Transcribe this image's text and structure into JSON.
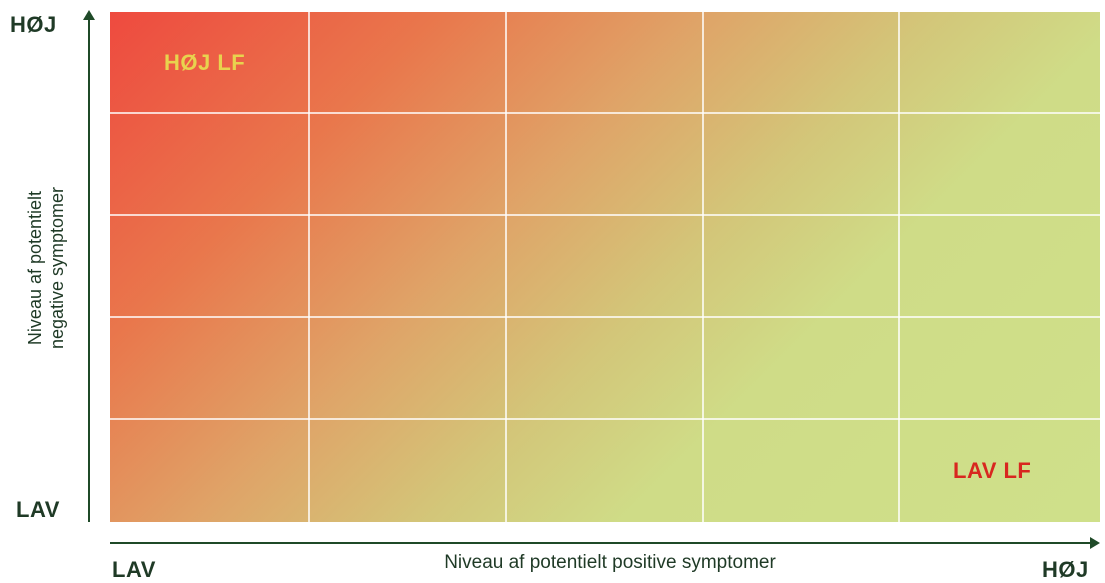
{
  "matrix": {
    "rows": 5,
    "cols": 5,
    "gradient_colors": {
      "high_risk": "#ee4a3f",
      "mid": "#dfa468",
      "low_risk": "#cfe08a"
    },
    "top_left_label": "HØJ LF",
    "top_left_label_color": "#e8d34e",
    "bottom_right_label": "LAV LF",
    "bottom_right_label_color": "#d8271f"
  },
  "y_axis": {
    "high_label": "HØJ",
    "low_label": "LAV",
    "title_line1": "Niveau af potentielt",
    "title_line2": "negative symptomer"
  },
  "x_axis": {
    "low_label": "LAV",
    "high_label": "HØJ",
    "title": "Niveau af potentielt positive symptomer"
  },
  "axis_color": "#1f4a28"
}
